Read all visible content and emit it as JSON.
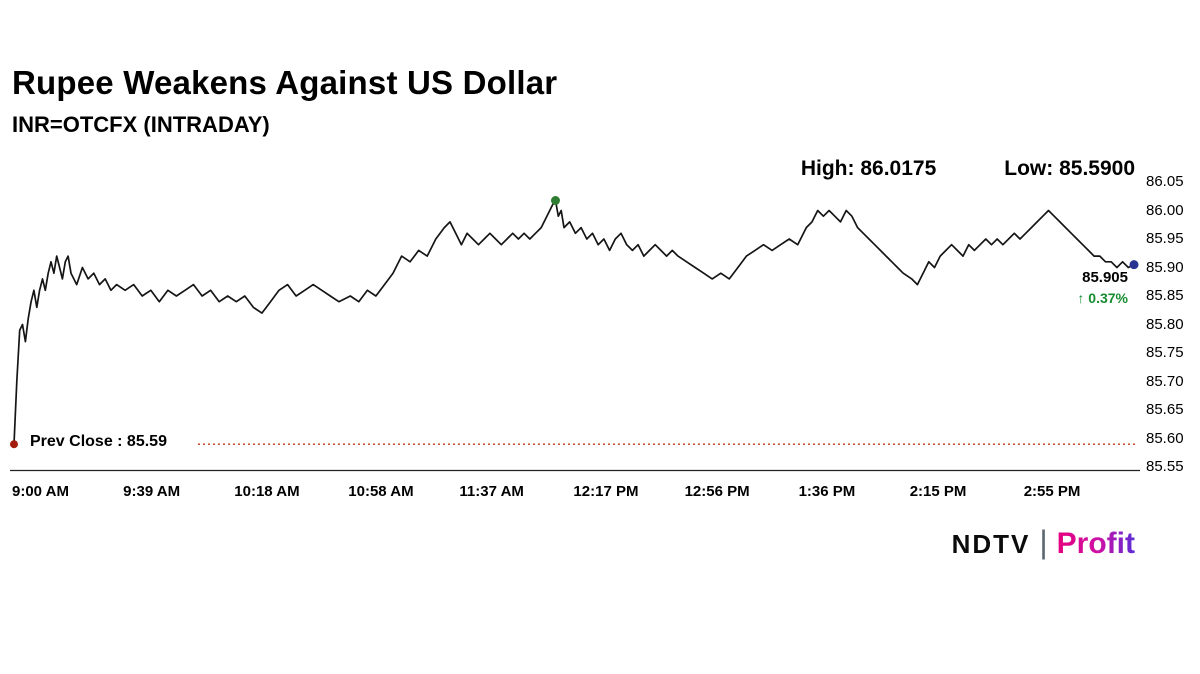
{
  "header": {
    "title": "Rupee Weakens Against US Dollar",
    "subtitle": "INR=OTCFX (INTRADAY)"
  },
  "stats": {
    "high_text": "High: 86.0175",
    "low_text": "Low: 85.5900"
  },
  "chart_data": {
    "type": "line",
    "title": "Rupee Weakens Against US Dollar",
    "symbol": "INR=OTCFX (INTRADAY)",
    "high": 86.0175,
    "low": 85.59,
    "prev_close": {
      "value": 85.59,
      "label": "Prev Close : 85.59"
    },
    "last": {
      "value": 85.905,
      "value_text": "85.905",
      "change_text": "↑ 0.37%",
      "change_pct": 0.37,
      "direction": "up"
    },
    "high_point": {
      "minute": 190,
      "value": 86.0175
    },
    "xlim_minutes": [
      0,
      393
    ],
    "grid": false,
    "legend": false,
    "x_axis": {
      "ticks": [
        {
          "label": "9:00 AM",
          "minute": 0
        },
        {
          "label": "9:39 AM",
          "minute": 39
        },
        {
          "label": "10:18 AM",
          "minute": 78
        },
        {
          "label": "10:58 AM",
          "minute": 118
        },
        {
          "label": "11:37 AM",
          "minute": 157
        },
        {
          "label": "12:17 PM",
          "minute": 197
        },
        {
          "label": "12:56 PM",
          "minute": 236
        },
        {
          "label": "1:36 PM",
          "minute": 276
        },
        {
          "label": "2:15 PM",
          "minute": 315
        },
        {
          "label": "2:55 PM",
          "minute": 355
        }
      ]
    },
    "y_axis": {
      "min": 85.55,
      "max": 86.05,
      "ticks": [
        "86.05",
        "86.00",
        "85.95",
        "85.90",
        "85.85",
        "85.80",
        "85.75",
        "85.70",
        "85.65",
        "85.60",
        "85.55"
      ]
    },
    "series": [
      {
        "name": "INR=OTCFX",
        "points": [
          [
            0,
            85.59
          ],
          [
            1,
            85.7
          ],
          [
            2,
            85.79
          ],
          [
            3,
            85.8
          ],
          [
            4,
            85.77
          ],
          [
            5,
            85.81
          ],
          [
            6,
            85.84
          ],
          [
            7,
            85.86
          ],
          [
            8,
            85.83
          ],
          [
            9,
            85.86
          ],
          [
            10,
            85.88
          ],
          [
            11,
            85.86
          ],
          [
            12,
            85.89
          ],
          [
            13,
            85.91
          ],
          [
            14,
            85.89
          ],
          [
            15,
            85.92
          ],
          [
            16,
            85.9
          ],
          [
            17,
            85.88
          ],
          [
            18,
            85.91
          ],
          [
            19,
            85.92
          ],
          [
            20,
            85.89
          ],
          [
            22,
            85.87
          ],
          [
            24,
            85.9
          ],
          [
            26,
            85.88
          ],
          [
            28,
            85.89
          ],
          [
            30,
            85.87
          ],
          [
            32,
            85.88
          ],
          [
            34,
            85.86
          ],
          [
            36,
            85.87
          ],
          [
            39,
            85.86
          ],
          [
            42,
            85.87
          ],
          [
            45,
            85.85
          ],
          [
            48,
            85.86
          ],
          [
            51,
            85.84
          ],
          [
            54,
            85.86
          ],
          [
            57,
            85.85
          ],
          [
            60,
            85.86
          ],
          [
            63,
            85.87
          ],
          [
            66,
            85.85
          ],
          [
            69,
            85.86
          ],
          [
            72,
            85.84
          ],
          [
            75,
            85.85
          ],
          [
            78,
            85.84
          ],
          [
            81,
            85.85
          ],
          [
            84,
            85.83
          ],
          [
            87,
            85.82
          ],
          [
            90,
            85.84
          ],
          [
            93,
            85.86
          ],
          [
            96,
            85.87
          ],
          [
            99,
            85.85
          ],
          [
            102,
            85.86
          ],
          [
            105,
            85.87
          ],
          [
            108,
            85.86
          ],
          [
            111,
            85.85
          ],
          [
            114,
            85.84
          ],
          [
            118,
            85.85
          ],
          [
            121,
            85.84
          ],
          [
            124,
            85.86
          ],
          [
            127,
            85.85
          ],
          [
            130,
            85.87
          ],
          [
            133,
            85.89
          ],
          [
            136,
            85.92
          ],
          [
            139,
            85.91
          ],
          [
            142,
            85.93
          ],
          [
            145,
            85.92
          ],
          [
            148,
            85.95
          ],
          [
            151,
            85.97
          ],
          [
            153,
            85.98
          ],
          [
            155,
            85.96
          ],
          [
            157,
            85.94
          ],
          [
            159,
            85.96
          ],
          [
            161,
            85.95
          ],
          [
            163,
            85.94
          ],
          [
            165,
            85.95
          ],
          [
            167,
            85.96
          ],
          [
            169,
            85.95
          ],
          [
            171,
            85.94
          ],
          [
            173,
            85.95
          ],
          [
            175,
            85.96
          ],
          [
            177,
            85.95
          ],
          [
            179,
            85.96
          ],
          [
            181,
            85.95
          ],
          [
            183,
            85.96
          ],
          [
            185,
            85.97
          ],
          [
            187,
            85.99
          ],
          [
            189,
            86.01
          ],
          [
            190,
            86.0175
          ],
          [
            191,
            85.99
          ],
          [
            192,
            86.0
          ],
          [
            193,
            85.97
          ],
          [
            195,
            85.98
          ],
          [
            197,
            85.96
          ],
          [
            199,
            85.97
          ],
          [
            201,
            85.95
          ],
          [
            203,
            85.96
          ],
          [
            205,
            85.94
          ],
          [
            207,
            85.95
          ],
          [
            209,
            85.93
          ],
          [
            211,
            85.95
          ],
          [
            213,
            85.96
          ],
          [
            215,
            85.94
          ],
          [
            217,
            85.93
          ],
          [
            219,
            85.94
          ],
          [
            221,
            85.92
          ],
          [
            223,
            85.93
          ],
          [
            225,
            85.94
          ],
          [
            227,
            85.93
          ],
          [
            229,
            85.92
          ],
          [
            231,
            85.93
          ],
          [
            233,
            85.92
          ],
          [
            236,
            85.91
          ],
          [
            239,
            85.9
          ],
          [
            242,
            85.89
          ],
          [
            245,
            85.88
          ],
          [
            248,
            85.89
          ],
          [
            251,
            85.88
          ],
          [
            254,
            85.9
          ],
          [
            257,
            85.92
          ],
          [
            260,
            85.93
          ],
          [
            263,
            85.94
          ],
          [
            266,
            85.93
          ],
          [
            269,
            85.94
          ],
          [
            272,
            85.95
          ],
          [
            275,
            85.94
          ],
          [
            276,
            85.95
          ],
          [
            278,
            85.97
          ],
          [
            280,
            85.98
          ],
          [
            282,
            86.0
          ],
          [
            284,
            85.99
          ],
          [
            286,
            86.0
          ],
          [
            288,
            85.99
          ],
          [
            290,
            85.98
          ],
          [
            292,
            86.0
          ],
          [
            294,
            85.99
          ],
          [
            296,
            85.97
          ],
          [
            298,
            85.96
          ],
          [
            300,
            85.95
          ],
          [
            302,
            85.94
          ],
          [
            304,
            85.93
          ],
          [
            306,
            85.92
          ],
          [
            308,
            85.91
          ],
          [
            310,
            85.9
          ],
          [
            312,
            85.89
          ],
          [
            315,
            85.88
          ],
          [
            317,
            85.87
          ],
          [
            319,
            85.89
          ],
          [
            321,
            85.91
          ],
          [
            323,
            85.9
          ],
          [
            325,
            85.92
          ],
          [
            327,
            85.93
          ],
          [
            329,
            85.94
          ],
          [
            331,
            85.93
          ],
          [
            333,
            85.92
          ],
          [
            335,
            85.94
          ],
          [
            337,
            85.93
          ],
          [
            339,
            85.94
          ],
          [
            341,
            85.95
          ],
          [
            343,
            85.94
          ],
          [
            345,
            85.95
          ],
          [
            347,
            85.94
          ],
          [
            349,
            85.95
          ],
          [
            351,
            85.96
          ],
          [
            353,
            85.95
          ],
          [
            355,
            85.96
          ],
          [
            357,
            85.97
          ],
          [
            359,
            85.98
          ],
          [
            361,
            85.99
          ],
          [
            363,
            86.0
          ],
          [
            365,
            85.99
          ],
          [
            367,
            85.98
          ],
          [
            369,
            85.97
          ],
          [
            371,
            85.96
          ],
          [
            373,
            85.95
          ],
          [
            375,
            85.94
          ],
          [
            377,
            85.93
          ],
          [
            379,
            85.92
          ],
          [
            381,
            85.92
          ],
          [
            383,
            85.91
          ],
          [
            385,
            85.91
          ],
          [
            387,
            85.9
          ],
          [
            389,
            85.91
          ],
          [
            391,
            85.9
          ],
          [
            393,
            85.905
          ]
        ]
      }
    ],
    "colors": {
      "line": "#151515",
      "prev_close_line": "#c23616",
      "start_dot": "#a31d0e",
      "peak_dot": "#2e7d32",
      "last_dot": "#283593",
      "change_green": "#168c2f",
      "axis": "#222222"
    }
  },
  "footer": {
    "brand_ndtv": "NDTV",
    "separator": "|",
    "brand_profit": "Profit"
  }
}
